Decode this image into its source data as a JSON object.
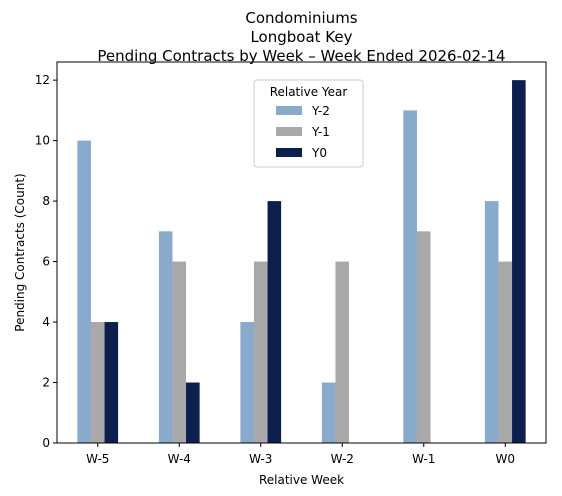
{
  "chart_data": {
    "type": "bar",
    "title_lines": [
      "Condominiums",
      "Longboat Key",
      "Pending Contracts by Week – Week Ended 2026-02-14"
    ],
    "xlabel": "Relative Week",
    "ylabel": "Pending Contracts (Count)",
    "categories": [
      "W-5",
      "W-4",
      "W-3",
      "W-2",
      "W-1",
      "W0"
    ],
    "series": [
      {
        "name": "Y-2",
        "color": "#8aaacb",
        "values": [
          10,
          7,
          4,
          2,
          11,
          8
        ]
      },
      {
        "name": "Y-1",
        "color": "#a9a9a9",
        "values": [
          4,
          6,
          6,
          6,
          7,
          6
        ]
      },
      {
        "name": "Y0",
        "color": "#0c1f4d",
        "values": [
          4,
          2,
          8,
          null,
          null,
          12
        ]
      }
    ],
    "ylim": [
      0,
      12.6
    ],
    "yticks": [
      0,
      2,
      4,
      6,
      8,
      10,
      12
    ],
    "grid": false,
    "legend": {
      "title": "Relative Year",
      "placement": "top-center"
    }
  }
}
